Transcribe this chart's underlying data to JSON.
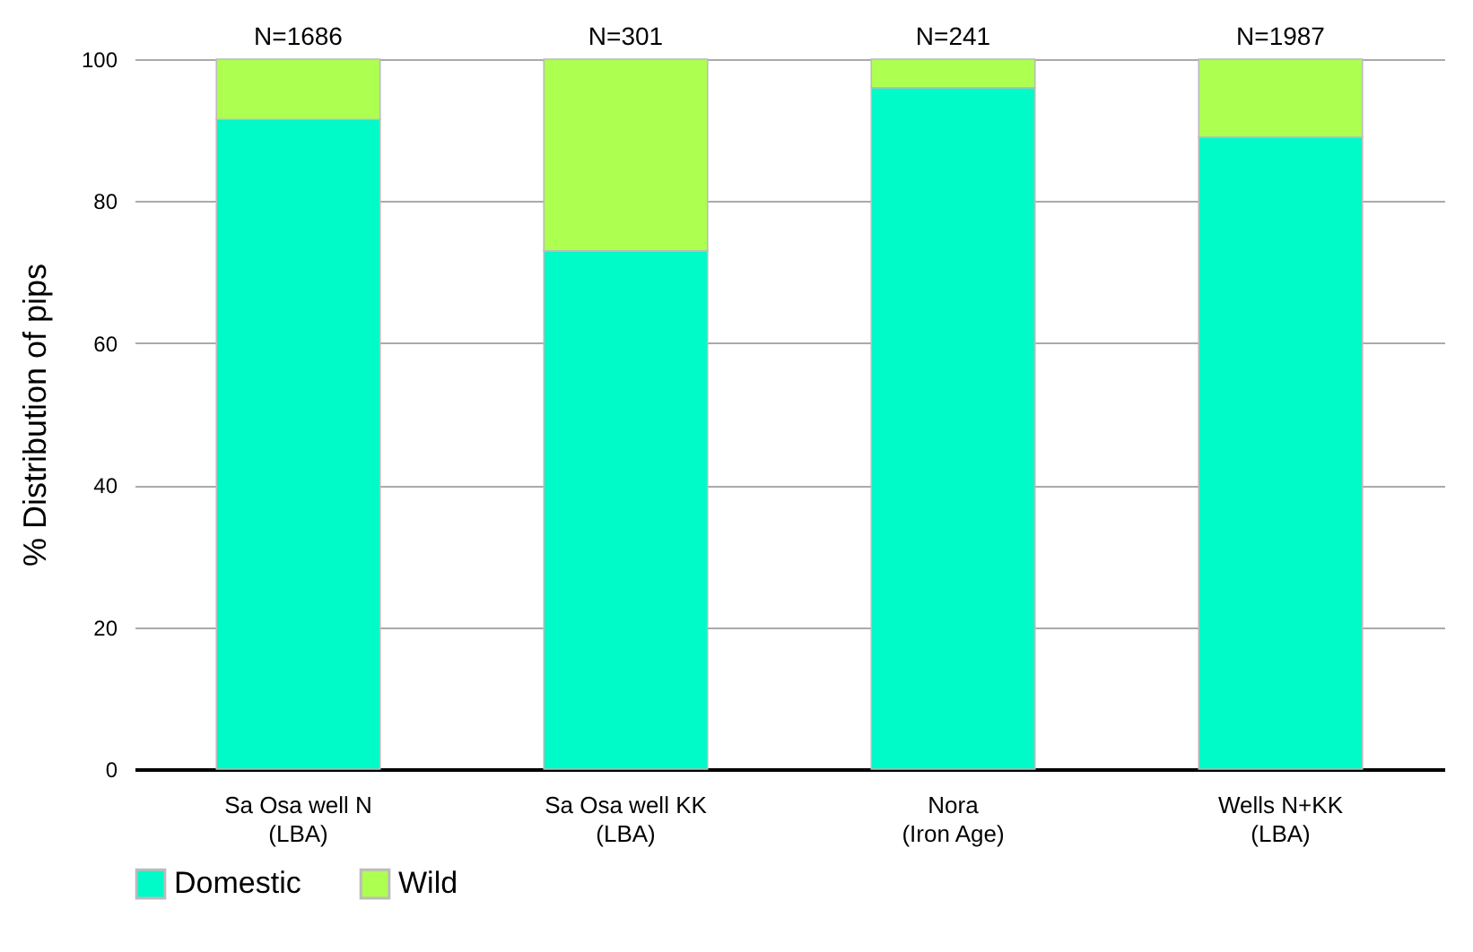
{
  "chart_data": {
    "type": "bar",
    "stacked": true,
    "ylabel": "% Distribution of pips",
    "categories": [
      "Sa Osa well N\n(LBA)",
      "Sa Osa well KK\n(LBA)",
      "Nora\n(Iron Age)",
      "Wells N+KK\n(LBA)"
    ],
    "series": [
      {
        "name": "Domestic",
        "color": "#00fac8",
        "values": [
          91.5,
          73,
          96,
          89
        ]
      },
      {
        "name": "Wild",
        "color": "#adff50",
        "values": [
          8.5,
          27,
          4,
          11
        ]
      }
    ],
    "ylim": [
      0,
      100
    ],
    "yticks": [
      0,
      20,
      40,
      60,
      80,
      100
    ],
    "grid": "y",
    "legend": "bottom",
    "annotations": [
      {
        "text": "N=1686",
        "x": "Sa Osa well N\n(LBA)",
        "y": 100
      },
      {
        "text": "N=301",
        "x": "Sa Osa well KK\n(LBA)",
        "y": 100
      },
      {
        "text": "N=241",
        "x": "Nora\n(Iron Age)",
        "y": 100
      },
      {
        "text": "N=1987",
        "x": "Wells N+KK\n(LBA)",
        "y": 100
      }
    ]
  }
}
